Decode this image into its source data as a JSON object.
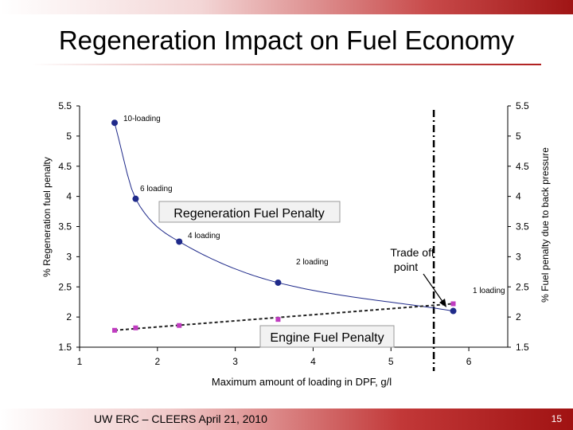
{
  "slide": {
    "title": "Regeneration Impact on Fuel Economy",
    "footer": "UW ERC – CLEERS April 21, 2010",
    "slide_number": "15"
  },
  "colors": {
    "regen_series": "#1f2a8a",
    "engine_series": "#c03cc0",
    "engine_line": "#222222",
    "accent": "#a01515"
  },
  "chart_data": {
    "type": "scatter",
    "xlabel": "Maximum amount of loading in DPF, g/l",
    "ylabel_left": "% Regeneration fuel penalty",
    "ylabel_right": "% Fuel penalty due to back pressure",
    "xlim": [
      1,
      6.5
    ],
    "ylim": [
      1.5,
      5.5
    ],
    "x_ticks": [
      "1",
      "2",
      "3",
      "4",
      "5",
      "6"
    ],
    "y_ticks": [
      "5.5",
      "5",
      "4.5",
      "4",
      "3.5",
      "3",
      "2.5",
      "2",
      "1.5"
    ],
    "y_ticks_right": [
      "5.5",
      "5",
      "4.5",
      "4",
      "3.5",
      "3",
      "2.5",
      "2",
      "1.5"
    ],
    "series": [
      {
        "name": "Regeneration Fuel Penalty",
        "marker": "circle",
        "x": [
          1.45,
          1.72,
          2.28,
          3.55,
          5.8
        ],
        "y": [
          5.22,
          3.96,
          3.25,
          2.57,
          2.1
        ]
      },
      {
        "name": "Engine Fuel Penalty",
        "marker": "square",
        "x": [
          1.45,
          1.72,
          2.28,
          3.55,
          5.8
        ],
        "y": [
          1.78,
          1.82,
          1.86,
          1.96,
          2.22
        ]
      }
    ],
    "point_labels": [
      "10-loading",
      "6 loading",
      "4 loading",
      "2 loading",
      "1 loading"
    ],
    "annotations": {
      "regen_label": "Regeneration Fuel Penalty",
      "engine_label": "Engine Fuel Penalty",
      "tradeoff_line1": "Trade off",
      "tradeoff_line2": "point"
    },
    "tradeoff_x": 5.55
  }
}
